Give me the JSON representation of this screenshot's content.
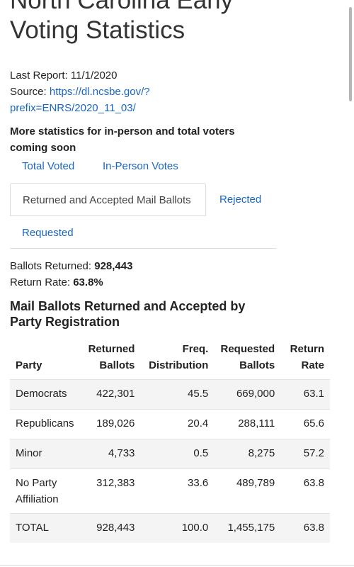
{
  "header": {
    "title_line1": "North Carolina Early",
    "title_line2": "Voting Statistics"
  },
  "meta": {
    "last_report_label": "Last Report: 11/1/2020",
    "source_label": "Source: ",
    "source_link_line1": "https://dl.ncsbe.gov/?",
    "source_link_line2": "prefix=ENRS/2020_11_03/"
  },
  "notice": {
    "line1": "More statistics for in-person and total voters",
    "line2": "coming soon"
  },
  "tabs": [
    {
      "label": "Total Voted",
      "active": false
    },
    {
      "label": "In-Person Votes",
      "active": false
    },
    {
      "label": "Returned and Accepted Mail Ballots",
      "active": true
    },
    {
      "label": "Rejected",
      "active": false
    },
    {
      "label": "Requested",
      "active": false
    }
  ],
  "stats": {
    "returned_label": "Ballots Returned: ",
    "returned_value": "928,443",
    "rate_label": "Return Rate: ",
    "rate_value": "63.8%"
  },
  "section": {
    "title": "Mail Ballots Returned and Accepted by Party Registration"
  },
  "table": {
    "headers": {
      "party": "Party",
      "returned_1": "Returned",
      "returned_2": "Ballots",
      "freq_1": "Freq.",
      "freq_2": "Distribution",
      "requested_1": "Requested",
      "requested_2": "Ballots",
      "rate_1": "Return",
      "rate_2": "Rate"
    },
    "rows": [
      {
        "party": "Democrats",
        "party_2": "",
        "returned": "422,301",
        "freq": "45.5",
        "requested": "669,000",
        "rate": "63.1"
      },
      {
        "party": "Republicans",
        "party_2": "",
        "returned": "189,026",
        "freq": "20.4",
        "requested": "288,111",
        "rate": "65.6"
      },
      {
        "party": "Minor",
        "party_2": "",
        "returned": "4,733",
        "freq": "0.5",
        "requested": "8,275",
        "rate": "57.2"
      },
      {
        "party": "No Party",
        "party_2": "Affiliation",
        "returned": "312,383",
        "freq": "33.6",
        "requested": "489,789",
        "rate": "63.8"
      },
      {
        "party": "TOTAL",
        "party_2": "",
        "returned": "928,443",
        "freq": "100.0",
        "requested": "1,455,175",
        "rate": "63.8"
      }
    ]
  },
  "colors": {
    "link": "#1a66c4",
    "text": "#222222",
    "stripe": "#f4f4f4"
  }
}
